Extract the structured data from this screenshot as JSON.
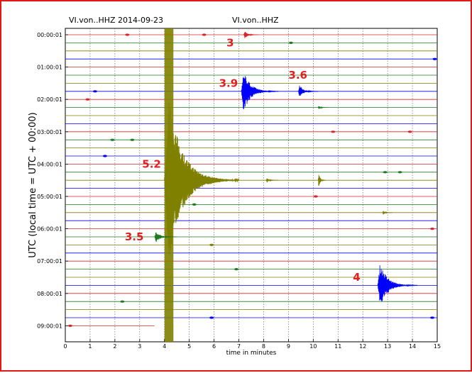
{
  "chart_data": {
    "type": "line",
    "title_left": "VI.von..HHZ 2014-09-23",
    "title_center": "VI.von..HHZ",
    "xlabel": "time in minutes",
    "ylabel": "UTC (local time = UTC + 00:00)",
    "xlim": [
      0,
      15
    ],
    "x_ticks": [
      "0",
      "1",
      "2",
      "3",
      "4",
      "5",
      "6",
      "7",
      "8",
      "9",
      "10",
      "11",
      "12",
      "13",
      "14",
      "15"
    ],
    "y_ticks": [
      {
        "label": "00:00:01",
        "row": 0
      },
      {
        "label": "01:00:01",
        "row": 4
      },
      {
        "label": "02:00:01",
        "row": 8
      },
      {
        "label": "03:00:01",
        "row": 12
      },
      {
        "label": "04:00:01",
        "row": 16
      },
      {
        "label": "05:00:01",
        "row": 20
      },
      {
        "label": "06:00:01",
        "row": 24
      },
      {
        "label": "07:00:01",
        "row": 28
      },
      {
        "label": "08:00:01",
        "row": 32
      },
      {
        "label": "09:00:01",
        "row": 36
      }
    ],
    "row_colors": [
      "#d62728",
      "#1f7a1f",
      "#7f7f00",
      "#0000ff"
    ],
    "rows": 37,
    "grid": true,
    "annotations": [
      {
        "text": "3",
        "x": 6.5,
        "row": 1,
        "color": "#e02020"
      },
      {
        "text": "3.9",
        "x": 6.2,
        "row": 6,
        "color": "#e02020"
      },
      {
        "text": "3.6",
        "x": 9.0,
        "row": 5,
        "color": "#e02020"
      },
      {
        "text": "5.2",
        "x": 3.1,
        "row": 16,
        "color": "#e02020"
      },
      {
        "text": "3.5",
        "x": 2.4,
        "row": 25,
        "color": "#e02020"
      },
      {
        "text": "4",
        "x": 11.6,
        "row": 30,
        "color": "#e02020"
      }
    ],
    "events": [
      {
        "row": 0,
        "x": 7.2,
        "amp": 0.5,
        "dur": 0.6,
        "color": "#d62728"
      },
      {
        "row": 7,
        "x": 7.1,
        "amp": 2.6,
        "dur": 1.5,
        "color": "#0000ff"
      },
      {
        "row": 7,
        "x": 9.4,
        "amp": 0.8,
        "dur": 0.8,
        "color": "#0000ff"
      },
      {
        "row": 9,
        "x": 10.2,
        "amp": 0.2,
        "dur": 0.4,
        "color": "#1f7a1f"
      },
      {
        "row": 18,
        "x": 4.0,
        "amp": 10.0,
        "dur": 3.0,
        "color": "#7f7f00"
      },
      {
        "row": 18,
        "x": 8.1,
        "amp": 0.3,
        "dur": 0.5,
        "color": "#7f7f00"
      },
      {
        "row": 18,
        "x": 10.2,
        "amp": 1.0,
        "dur": 0.3,
        "color": "#7f7f00"
      },
      {
        "row": 22,
        "x": 12.8,
        "amp": 0.3,
        "dur": 0.4,
        "color": "#7f7f00"
      },
      {
        "row": 25,
        "x": 3.6,
        "amp": 0.7,
        "dur": 0.9,
        "color": "#1f7a1f"
      },
      {
        "row": 31,
        "x": 12.6,
        "amp": 2.8,
        "dur": 1.6,
        "color": "#0000ff"
      }
    ],
    "blips": [
      {
        "row": 0,
        "x": 2.5
      },
      {
        "row": 0,
        "x": 5.6
      },
      {
        "row": 1,
        "x": 9.1
      },
      {
        "row": 3,
        "x": 14.9
      },
      {
        "row": 7,
        "x": 1.2
      },
      {
        "row": 8,
        "x": 0.9
      },
      {
        "row": 12,
        "x": 10.8
      },
      {
        "row": 12,
        "x": 13.9
      },
      {
        "row": 13,
        "x": 2.7
      },
      {
        "row": 13,
        "x": 1.9
      },
      {
        "row": 15,
        "x": 1.6
      },
      {
        "row": 17,
        "x": 13.5
      },
      {
        "row": 17,
        "x": 12.9
      },
      {
        "row": 20,
        "x": 10.1
      },
      {
        "row": 21,
        "x": 5.2
      },
      {
        "row": 24,
        "x": 14.8
      },
      {
        "row": 26,
        "x": 5.9
      },
      {
        "row": 29,
        "x": 6.9
      },
      {
        "row": 33,
        "x": 2.3
      },
      {
        "row": 35,
        "x": 14.8
      },
      {
        "row": 35,
        "x": 5.9
      },
      {
        "row": 36,
        "x": 0.2
      }
    ]
  }
}
